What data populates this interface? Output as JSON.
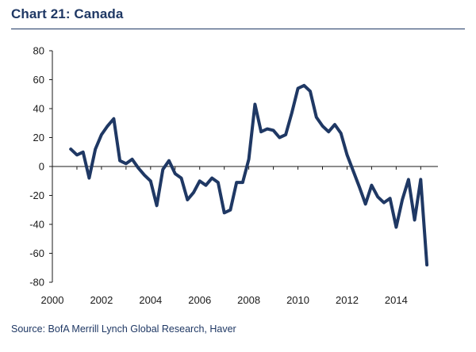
{
  "title": "Chart 21: Canada",
  "source": "Source: BofA Merrill Lynch Global Research, Haver",
  "chart_data": {
    "type": "line",
    "title": "Chart 21: Canada",
    "xlabel": "",
    "ylabel": "",
    "xlim": [
      2000,
      2015.7
    ],
    "ylim": [
      -80,
      80
    ],
    "x_ticks": [
      "2000",
      "2002",
      "2004",
      "2006",
      "2008",
      "2010",
      "2012",
      "2014"
    ],
    "y_ticks": [
      "80",
      "60",
      "40",
      "20",
      "0",
      "-20",
      "-40",
      "-60",
      "-80"
    ],
    "grid": false,
    "legend": "none",
    "colors": {
      "line": "#1f3864",
      "axis": "#1a1a1a",
      "title": "#1f3864"
    },
    "series": [
      {
        "x": [
          2000.75,
          2001.0,
          2001.25,
          2001.5,
          2001.75,
          2002.0,
          2002.25,
          2002.5,
          2002.75,
          2003.0,
          2003.25,
          2003.5,
          2003.75,
          2004.0,
          2004.25,
          2004.5,
          2004.75,
          2005.0,
          2005.25,
          2005.5,
          2005.75,
          2006.0,
          2006.25,
          2006.5,
          2006.75,
          2007.0,
          2007.25,
          2007.5,
          2007.75,
          2008.0,
          2008.25,
          2008.5,
          2008.75,
          2009.0,
          2009.25,
          2009.5,
          2009.75,
          2010.0,
          2010.25,
          2010.5,
          2010.75,
          2011.0,
          2011.25,
          2011.5,
          2011.75,
          2012.0,
          2012.25,
          2012.5,
          2012.75,
          2013.0,
          2013.25,
          2013.5,
          2013.75,
          2014.0,
          2014.25,
          2014.5,
          2014.75,
          2015.0,
          2015.25
        ],
        "values": [
          12,
          8,
          10,
          -8,
          12,
          22,
          28,
          33,
          4,
          2,
          5,
          -1,
          -6,
          -10,
          -27,
          -2,
          4,
          -5,
          -8,
          -23,
          -18,
          -10,
          -13,
          -8,
          -11,
          -32,
          -30,
          -11,
          -11,
          5,
          43,
          24,
          26,
          25,
          20,
          22,
          37,
          54,
          56,
          52,
          34,
          28,
          24,
          29,
          23,
          8,
          -3,
          -14,
          -26,
          -13,
          -21,
          -25,
          -22,
          -42,
          -23,
          -9,
          -37,
          -9,
          -68
        ]
      }
    ]
  }
}
